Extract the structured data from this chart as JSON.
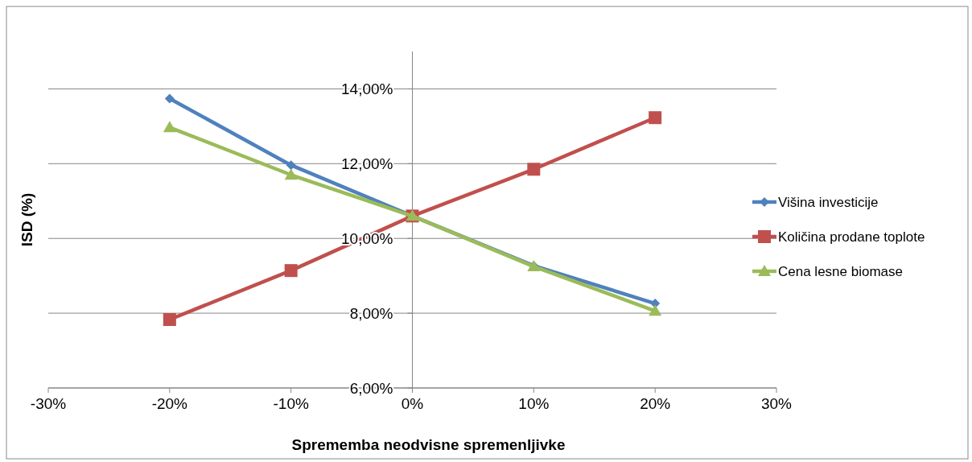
{
  "chart_data": {
    "type": "line",
    "xlabel": "Sprememba neodvisne spremenljivke",
    "ylabel": "ISD (%)",
    "x": [
      -20,
      -10,
      0,
      10,
      20
    ],
    "series": [
      {
        "name": "Višina investicije",
        "color": "#4f81bd",
        "marker": "diamond",
        "values": [
          13.74,
          11.96,
          10.6,
          9.27,
          8.26
        ]
      },
      {
        "name": "Količina prodane toplote",
        "color": "#c0504d",
        "marker": "square",
        "values": [
          7.83,
          9.14,
          10.6,
          11.85,
          13.23
        ]
      },
      {
        "name": "Cena lesne biomase",
        "color": "#9bbb59",
        "marker": "triangle",
        "values": [
          12.97,
          11.7,
          10.6,
          9.25,
          8.06
        ]
      }
    ],
    "xlim": [
      -30,
      30
    ],
    "xticks": [
      {
        "value": -30,
        "label": "-30%"
      },
      {
        "value": -20,
        "label": "-20%"
      },
      {
        "value": -10,
        "label": "-10%"
      },
      {
        "value": 0,
        "label": "0%"
      },
      {
        "value": 10,
        "label": "10%"
      },
      {
        "value": 20,
        "label": "20%"
      },
      {
        "value": 30,
        "label": "30%"
      }
    ],
    "ylim": [
      6,
      15
    ],
    "yticks": [
      {
        "value": 6,
        "label": "6,00%"
      },
      {
        "value": 8,
        "label": "8,00%"
      },
      {
        "value": 10,
        "label": "10,00%"
      },
      {
        "value": 12,
        "label": "12,00%"
      },
      {
        "value": 14,
        "label": "14,00%"
      }
    ],
    "grid": "y",
    "legend": "right",
    "line_style": "solid"
  }
}
